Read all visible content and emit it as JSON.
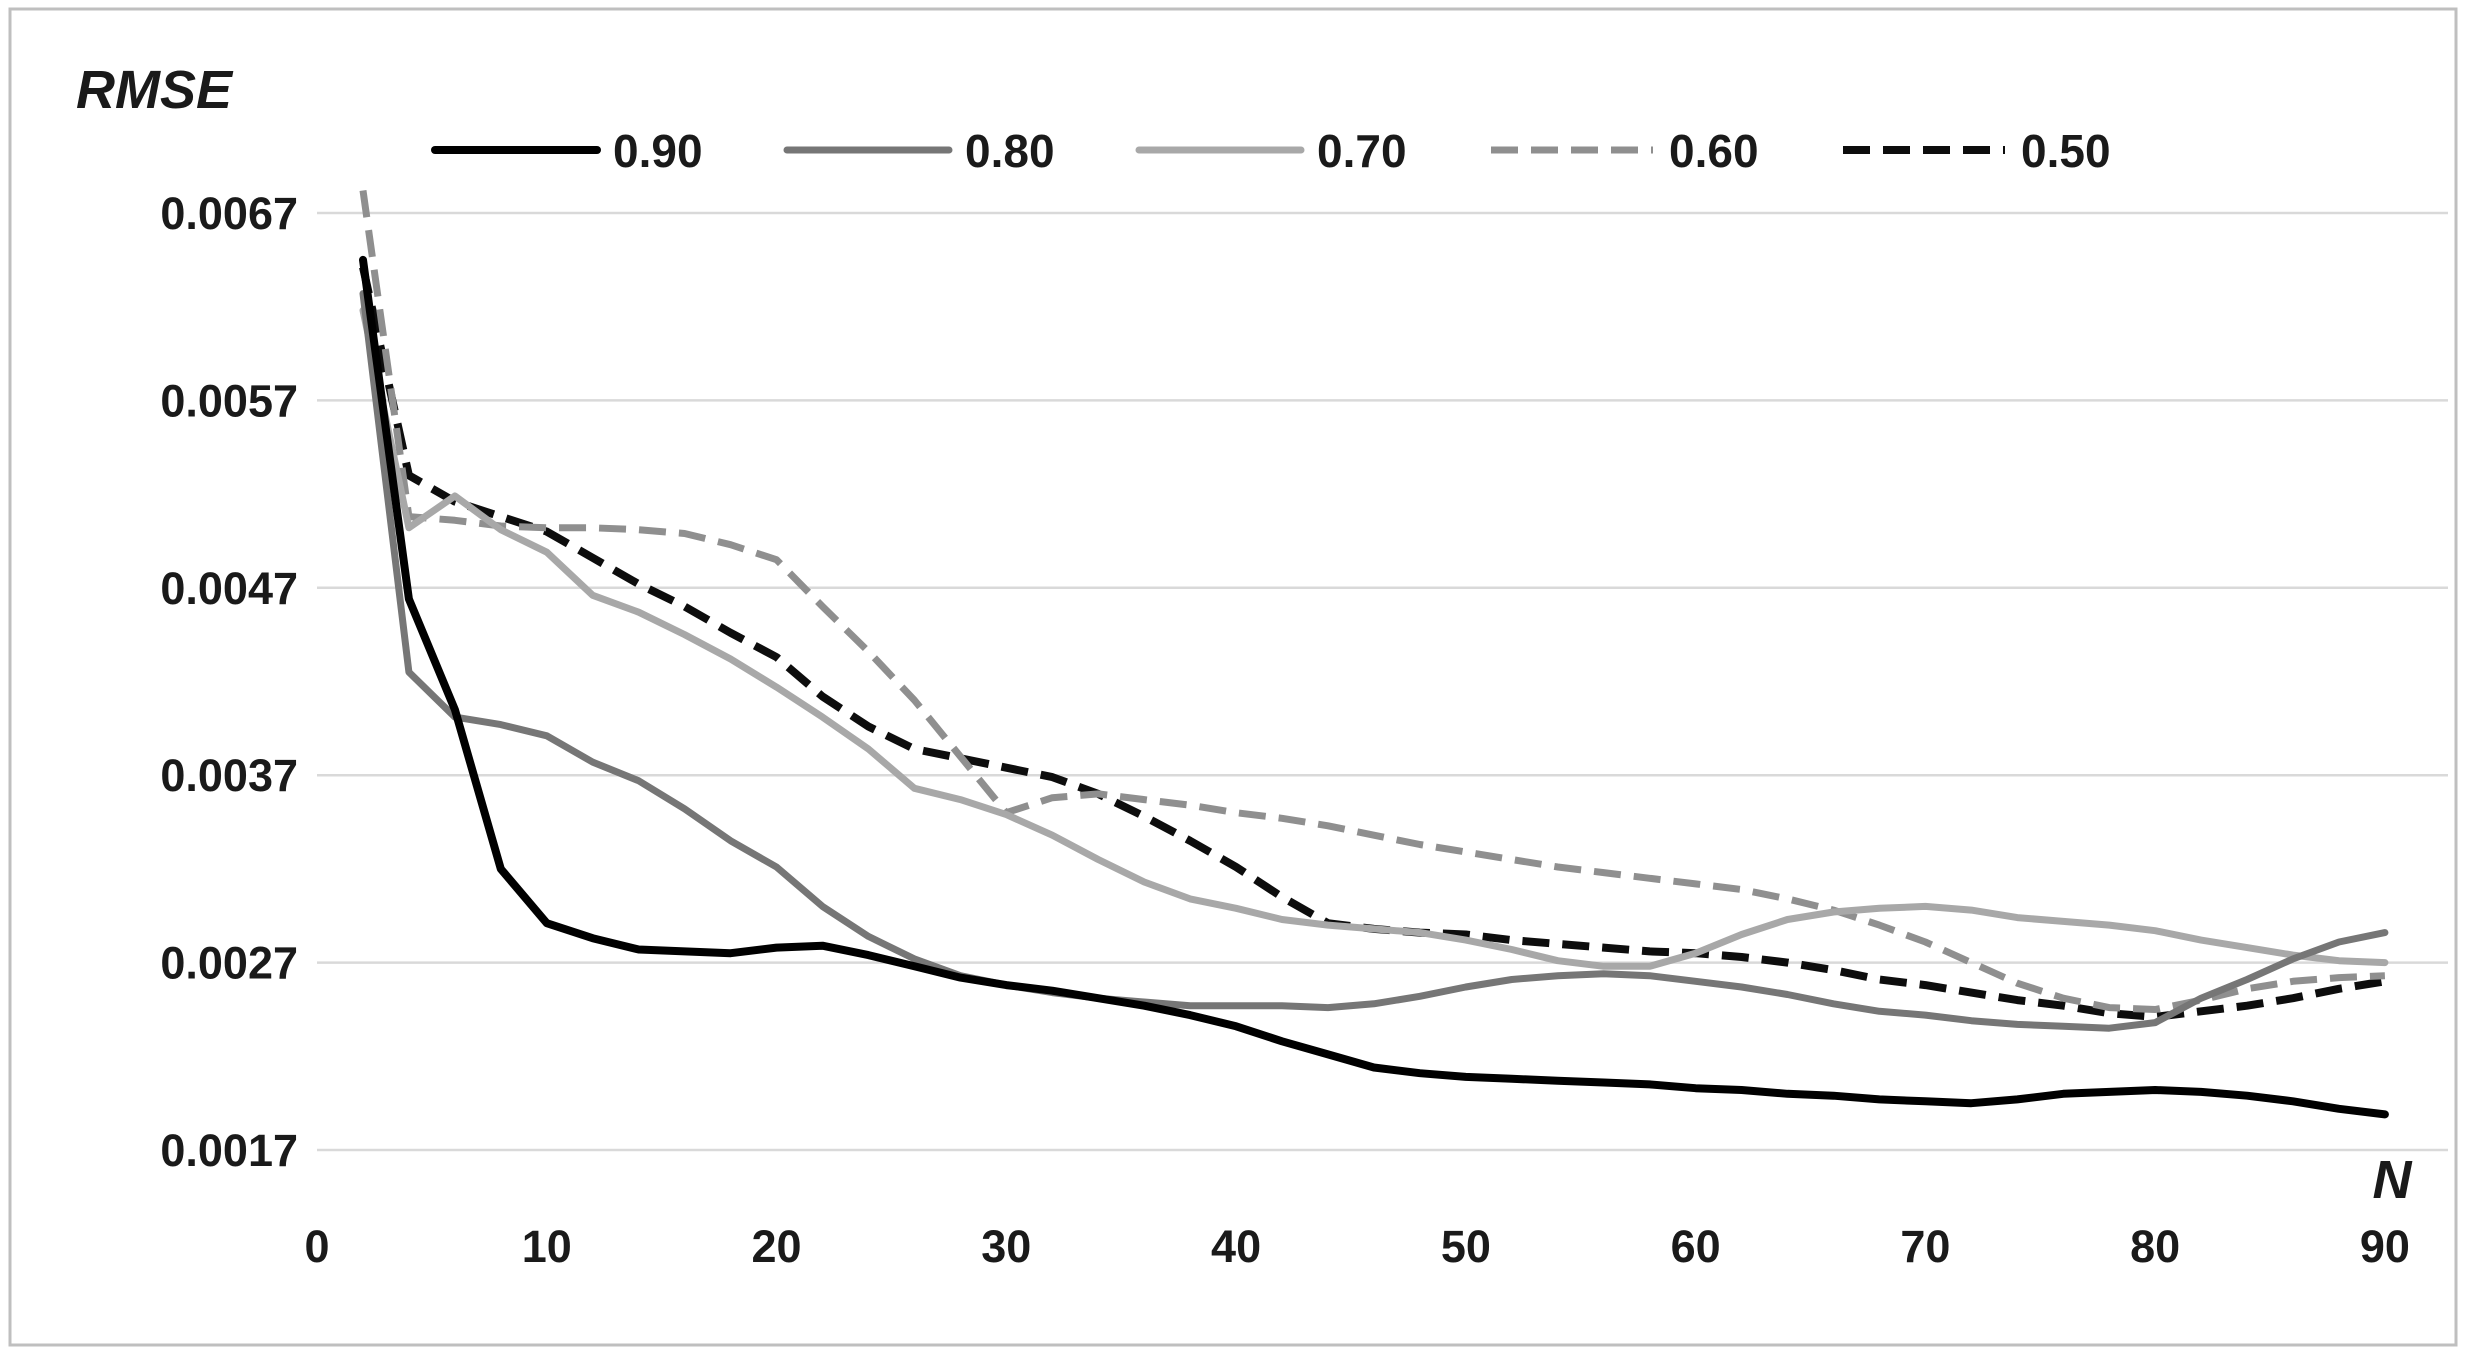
{
  "chart_data": {
    "type": "line",
    "title": "",
    "ylabel": "RMSE",
    "xlabel": "N",
    "grid": true,
    "legend_position": "top",
    "grid_color": "#d9d9d9",
    "frame_color": "#bfbfbf",
    "text_color": "#1a1a1a",
    "xlim": [
      0,
      90
    ],
    "ylim": [
      0.0017,
      0.0067
    ],
    "x_ticks": [
      0,
      10,
      20,
      30,
      40,
      50,
      60,
      70,
      80,
      90
    ],
    "y_ticks": [
      {
        "label": "0.0017",
        "value": 0.0017
      },
      {
        "label": "0.0027",
        "value": 0.0027
      },
      {
        "label": "0.0037",
        "value": 0.0037
      },
      {
        "label": "0.0047",
        "value": 0.0047
      },
      {
        "label": "0.0057",
        "value": 0.0057
      },
      {
        "label": "0.0067",
        "value": 0.0067
      }
    ],
    "x": [
      2,
      4,
      6,
      8,
      10,
      12,
      14,
      16,
      18,
      20,
      22,
      24,
      26,
      28,
      30,
      32,
      34,
      36,
      38,
      40,
      42,
      44,
      46,
      48,
      50,
      52,
      54,
      56,
      58,
      60,
      62,
      64,
      66,
      68,
      70,
      72,
      74,
      76,
      78,
      80,
      82,
      84,
      86,
      88,
      90
    ],
    "series": [
      {
        "name": "0.90",
        "color": "#000000",
        "width": 8,
        "dash": null,
        "values": [
          0.00645,
          0.00464,
          0.00405,
          0.0032,
          0.00291,
          0.00283,
          0.00277,
          0.00276,
          0.00275,
          0.00278,
          0.00279,
          0.00274,
          0.00268,
          0.00262,
          0.00258,
          0.00255,
          0.00251,
          0.00247,
          0.00242,
          0.00236,
          0.00228,
          0.00221,
          0.00214,
          0.00211,
          0.00209,
          0.00208,
          0.00207,
          0.00206,
          0.00205,
          0.00203,
          0.00202,
          0.002,
          0.00199,
          0.00197,
          0.00196,
          0.00195,
          0.00197,
          0.002,
          0.00201,
          0.00202,
          0.00201,
          0.00199,
          0.00196,
          0.00192,
          0.00189
        ]
      },
      {
        "name": "0.80",
        "color": "#767676",
        "width": 7,
        "dash": null,
        "values": [
          0.00627,
          0.00425,
          0.00401,
          0.00397,
          0.00391,
          0.00377,
          0.00367,
          0.00352,
          0.00335,
          0.00321,
          0.003,
          0.00284,
          0.00272,
          0.00263,
          0.00258,
          0.00254,
          0.00251,
          0.00249,
          0.00247,
          0.00247,
          0.00247,
          0.00246,
          0.00248,
          0.00252,
          0.00257,
          0.00261,
          0.00263,
          0.00264,
          0.00263,
          0.0026,
          0.00257,
          0.00253,
          0.00248,
          0.00244,
          0.00242,
          0.00239,
          0.00237,
          0.00236,
          0.00235,
          0.00238,
          0.00251,
          0.00261,
          0.00272,
          0.00281,
          0.00286
        ]
      },
      {
        "name": "0.70",
        "color": "#a8a8a8",
        "width": 7,
        "dash": null,
        "values": [
          0.00618,
          0.00502,
          0.00519,
          0.00501,
          0.00489,
          0.00466,
          0.00457,
          0.00445,
          0.00432,
          0.00417,
          0.00401,
          0.00384,
          0.00363,
          0.00357,
          0.00349,
          0.00338,
          0.00325,
          0.00313,
          0.00304,
          0.00299,
          0.00293,
          0.0029,
          0.00288,
          0.00286,
          0.00282,
          0.00277,
          0.00271,
          0.00268,
          0.00268,
          0.00275,
          0.00285,
          0.00293,
          0.00297,
          0.00299,
          0.003,
          0.00298,
          0.00294,
          0.00292,
          0.0029,
          0.00287,
          0.00282,
          0.00278,
          0.00274,
          0.00271,
          0.0027
        ]
      },
      {
        "name": "0.60",
        "color": "#8f8f8f",
        "width": 7,
        "dash": [
          27,
          13
        ],
        "values": [
          0.00682,
          0.00508,
          0.00506,
          0.00503,
          0.00502,
          0.00502,
          0.00501,
          0.00499,
          0.00493,
          0.00485,
          0.0046,
          0.00436,
          0.0041,
          0.0038,
          0.0035,
          0.00358,
          0.0036,
          0.00357,
          0.00354,
          0.0035,
          0.00347,
          0.00343,
          0.00338,
          0.00333,
          0.00329,
          0.00325,
          0.00321,
          0.00318,
          0.00315,
          0.00312,
          0.00309,
          0.00304,
          0.00298,
          0.0029,
          0.00281,
          0.0027,
          0.00259,
          0.00251,
          0.00246,
          0.00245,
          0.0025,
          0.00256,
          0.0026,
          0.00262,
          0.00263
        ]
      },
      {
        "name": "0.50",
        "color": "#0d0d0d",
        "width": 8,
        "dash": [
          27,
          13
        ],
        "values": [
          0.00641,
          0.0053,
          0.00516,
          0.00508,
          0.005,
          0.00486,
          0.00472,
          0.0046,
          0.00446,
          0.00433,
          0.00412,
          0.00396,
          0.00384,
          0.00379,
          0.00374,
          0.00369,
          0.0036,
          0.00348,
          0.00335,
          0.00321,
          0.00305,
          0.00291,
          0.00288,
          0.00286,
          0.00285,
          0.00282,
          0.0028,
          0.00278,
          0.00276,
          0.00275,
          0.00273,
          0.0027,
          0.00266,
          0.00261,
          0.00258,
          0.00254,
          0.0025,
          0.00247,
          0.00243,
          0.00241,
          0.00244,
          0.00247,
          0.00251,
          0.00256,
          0.0026
        ]
      }
    ]
  }
}
